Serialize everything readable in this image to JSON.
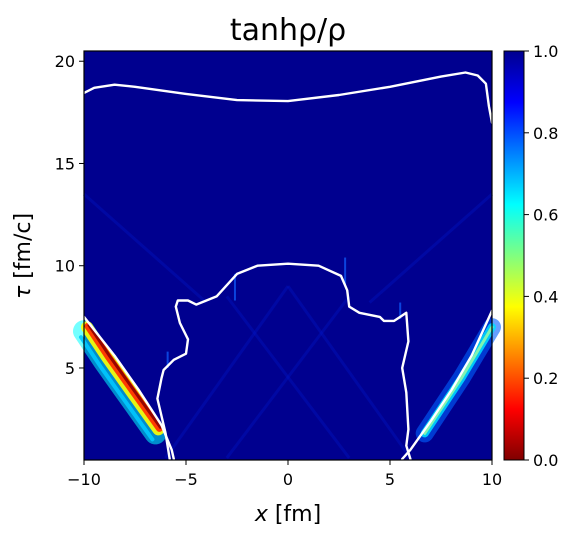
{
  "chart_data": {
    "type": "heatmap",
    "title": "tanhρ/ρ",
    "xlabel": {
      "var": "x",
      "unit": " [fm]"
    },
    "ylabel": {
      "var": "τ",
      "unit": " [fm/c]"
    },
    "xlim": [
      -10,
      10
    ],
    "ylim": [
      0.5,
      20.5
    ],
    "xticks": [
      -10,
      -5,
      0,
      5,
      10
    ],
    "xtick_labels": [
      "−10",
      "−5",
      "0",
      "5",
      "10"
    ],
    "yticks": [
      5,
      10,
      15,
      20
    ],
    "ytick_labels": [
      "5",
      "10",
      "15",
      "20"
    ],
    "colorbar": {
      "colormap": "jet_r",
      "range": [
        0.0,
        1.0
      ],
      "ticks": [
        0.0,
        0.2,
        0.4,
        0.6,
        0.8,
        1.0
      ],
      "tick_labels": [
        "0.0",
        "0.2",
        "0.4",
        "0.6",
        "0.8",
        "1.0"
      ],
      "stops": [
        "#800000",
        "#ff0000",
        "#ff8000",
        "#ffff00",
        "#80ff80",
        "#00ffff",
        "#0080ff",
        "#0000ff",
        "#00008f"
      ]
    },
    "background_value": 1.0,
    "features": [
      {
        "name": "left-light-cone-band",
        "min_value": 0.05,
        "points": [
          [
            -10,
            6.8
          ],
          [
            -9,
            5.3
          ],
          [
            -8,
            3.9
          ],
          [
            -7,
            2.5
          ],
          [
            -6.5,
            1.8
          ]
        ]
      },
      {
        "name": "right-light-cone-band",
        "min_value": 0.55,
        "points": [
          [
            6.7,
            1.8
          ],
          [
            7.5,
            3.0
          ],
          [
            8.5,
            4.5
          ],
          [
            10,
            7.0
          ]
        ]
      }
    ],
    "contours": [
      {
        "name": "upper-contour",
        "color": "#ffffff",
        "points": [
          [
            -10,
            18.45
          ],
          [
            -9.5,
            18.7
          ],
          [
            -8.5,
            18.85
          ],
          [
            -7.5,
            18.75
          ],
          [
            -5,
            18.4
          ],
          [
            -2.5,
            18.1
          ],
          [
            0,
            18.05
          ],
          [
            2.5,
            18.35
          ],
          [
            5,
            18.75
          ],
          [
            7.5,
            19.25
          ],
          [
            8.7,
            19.45
          ],
          [
            9.3,
            19.3
          ],
          [
            9.7,
            18.9
          ],
          [
            9.85,
            17.8
          ],
          [
            10,
            17.0
          ]
        ]
      },
      {
        "name": "inner-contour",
        "color": "#ffffff",
        "points": [
          [
            -5.8,
            0.55
          ],
          [
            -6.0,
            1.8
          ],
          [
            -6.4,
            3.5
          ],
          [
            -6.2,
            4.5
          ],
          [
            -6.1,
            4.9
          ],
          [
            -5.6,
            5.4
          ],
          [
            -5.0,
            5.7
          ],
          [
            -4.9,
            6.4
          ],
          [
            -5.3,
            7.2
          ],
          [
            -5.5,
            8.0
          ],
          [
            -5.4,
            8.3
          ],
          [
            -4.9,
            8.3
          ],
          [
            -4.5,
            8.1
          ],
          [
            -3.5,
            8.5
          ],
          [
            -2.5,
            9.6
          ],
          [
            -1.5,
            10.0
          ],
          [
            0,
            10.1
          ],
          [
            1.5,
            10.0
          ],
          [
            2.6,
            9.5
          ],
          [
            2.9,
            8.8
          ],
          [
            3.0,
            8.0
          ],
          [
            3.5,
            7.7
          ],
          [
            4.5,
            7.5
          ],
          [
            4.7,
            7.3
          ],
          [
            5.2,
            7.3
          ],
          [
            5.5,
            7.5
          ],
          [
            5.8,
            7.7
          ],
          [
            5.9,
            6.3
          ],
          [
            5.6,
            5.0
          ],
          [
            5.8,
            3.8
          ],
          [
            5.9,
            2.0
          ],
          [
            5.8,
            1.2
          ],
          [
            6.0,
            0.55
          ]
        ]
      },
      {
        "name": "left-edge-contour",
        "color": "#ffffff",
        "points": [
          [
            -10,
            7.5
          ],
          [
            -8.5,
            5.6
          ],
          [
            -7.3,
            3.9
          ],
          [
            -6.2,
            2.2
          ],
          [
            -5.7,
            1.0
          ],
          [
            -5.6,
            0.55
          ]
        ]
      },
      {
        "name": "right-edge-contour",
        "color": "#ffffff",
        "points": [
          [
            5.6,
            0.55
          ],
          [
            6.0,
            1.0
          ],
          [
            7.0,
            2.4
          ],
          [
            8.0,
            3.9
          ],
          [
            9.0,
            5.6
          ],
          [
            10,
            7.8
          ]
        ]
      }
    ]
  }
}
